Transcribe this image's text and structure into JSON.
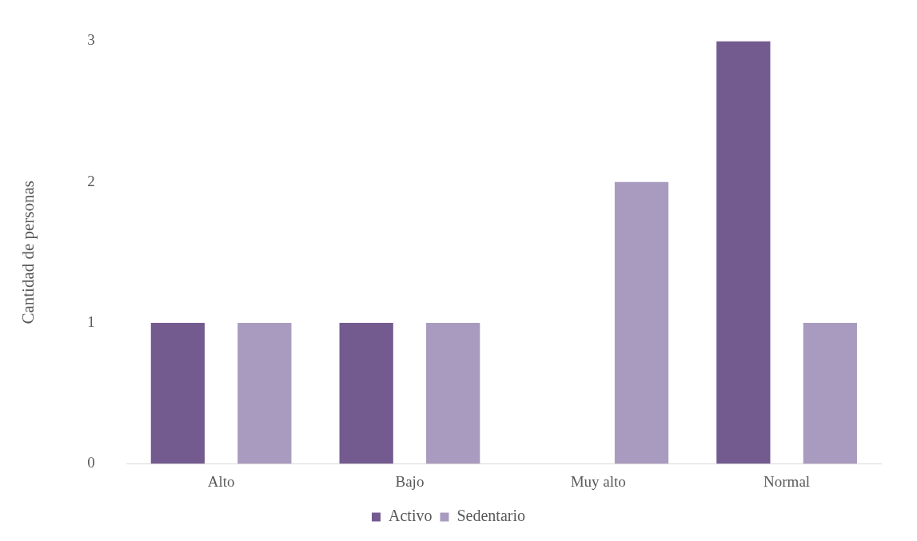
{
  "chart_data": {
    "type": "bar",
    "ylabel": "Cantidad de personas",
    "categories": [
      "Alto",
      "Bajo",
      "Muy alto",
      "Normal"
    ],
    "series": [
      {
        "name": "Activo",
        "color": "#735a8f",
        "values": [
          1,
          1,
          0,
          3
        ]
      },
      {
        "name": "Sedentario",
        "color": "#a99bbf",
        "values": [
          1,
          1,
          2,
          1
        ]
      }
    ],
    "ylim": [
      0,
      3
    ],
    "yticks": [
      0,
      1,
      2,
      3
    ],
    "grid": false,
    "legend": "bottom"
  }
}
